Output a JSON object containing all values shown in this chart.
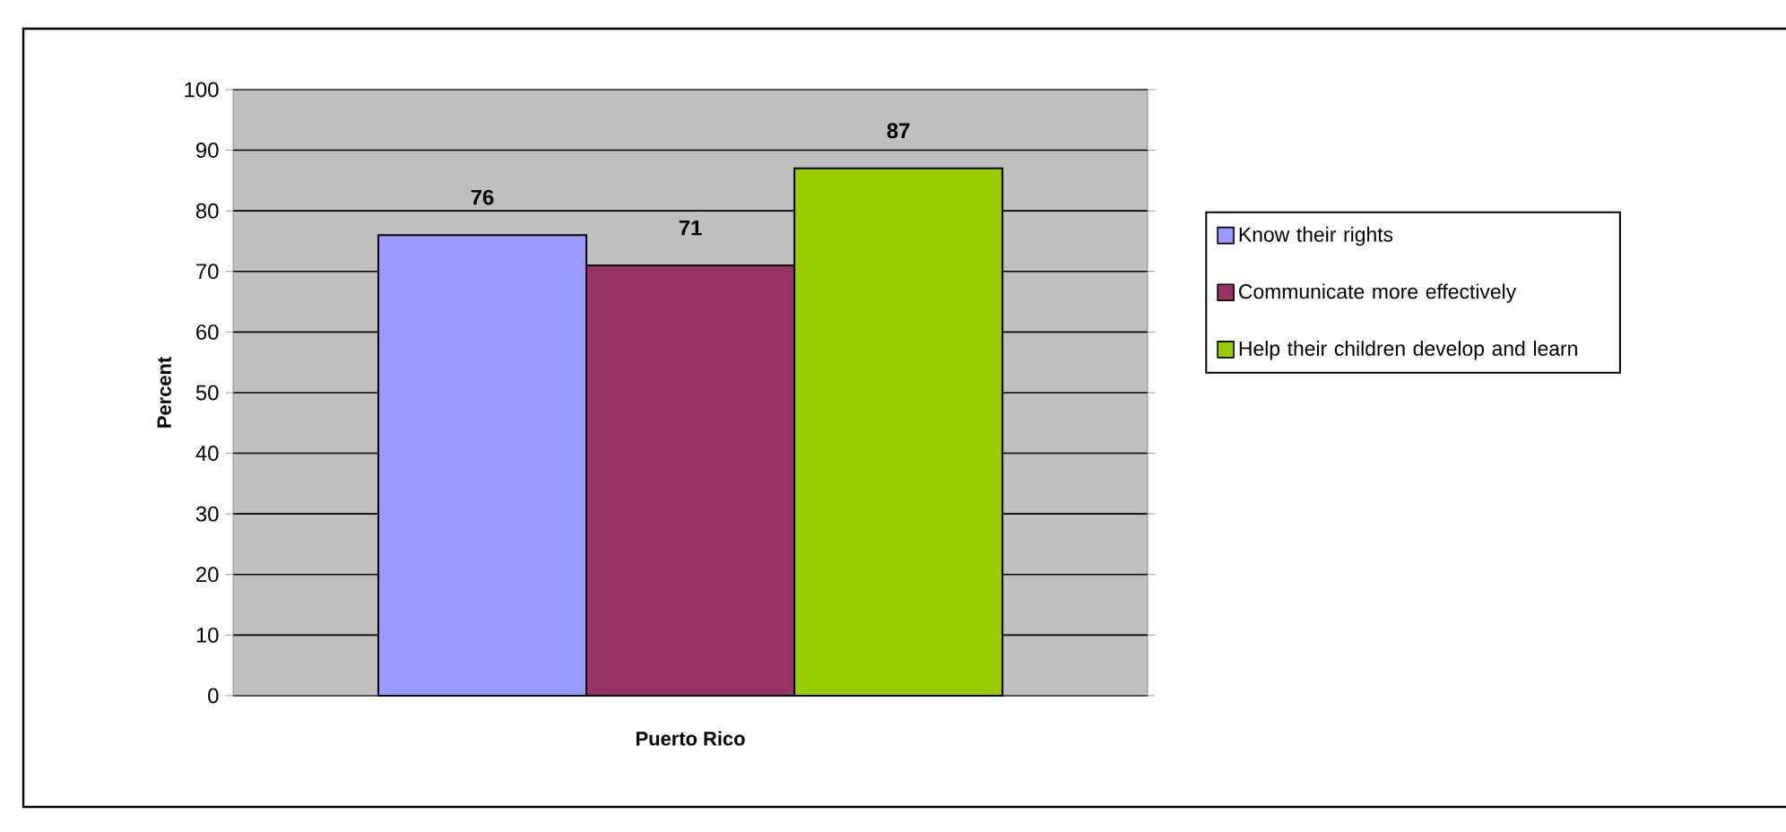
{
  "chart_data": {
    "type": "bar",
    "categories": [
      "Puerto Rico"
    ],
    "ylabel": "Percent",
    "series": [
      {
        "name": "Know  their rights",
        "color": "#9999ff",
        "values": [
          76
        ]
      },
      {
        "name": "Communicate more effectively",
        "color": "#993366",
        "values": [
          71
        ]
      },
      {
        "name": "Help their children develop and learn",
        "color": "#99cc00",
        "values": [
          87
        ]
      }
    ],
    "ylim": [
      0,
      100
    ],
    "yticks": [
      0,
      10,
      20,
      30,
      40,
      50,
      60,
      70,
      80,
      90,
      100
    ],
    "grid": "y",
    "legend": "right",
    "data_labels": true
  }
}
